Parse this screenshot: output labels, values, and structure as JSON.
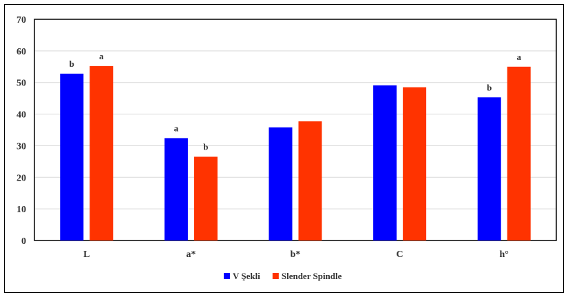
{
  "chart_data": {
    "type": "bar",
    "categories": [
      "L",
      "a*",
      "b*",
      "C",
      "h°"
    ],
    "series": [
      {
        "name": "V Şekli",
        "color": "#0000ff",
        "values": [
          52.8,
          32.4,
          35.8,
          49.1,
          45.3
        ],
        "labels": [
          "b",
          "a",
          "",
          "",
          "b"
        ]
      },
      {
        "name": "Slender Spindle",
        "color": "#ff3300",
        "values": [
          55.2,
          26.5,
          37.7,
          48.5,
          55.0
        ],
        "labels": [
          "a",
          "b",
          "",
          "",
          "a"
        ]
      }
    ],
    "ylim": [
      0,
      70
    ],
    "yticks": [
      0,
      10,
      20,
      30,
      40,
      50,
      60,
      70
    ],
    "grid": true,
    "legend_position": "bottom",
    "title": "",
    "xlabel": "",
    "ylabel": ""
  }
}
